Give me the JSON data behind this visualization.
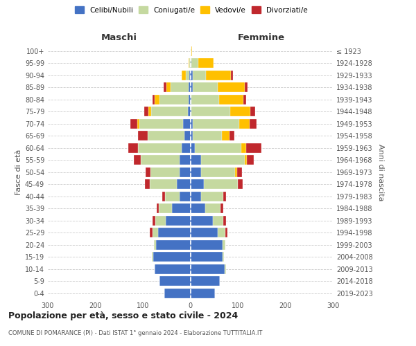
{
  "age_groups": [
    "0-4",
    "5-9",
    "10-14",
    "15-19",
    "20-24",
    "25-29",
    "30-34",
    "35-39",
    "40-44",
    "45-49",
    "50-54",
    "55-59",
    "60-64",
    "65-69",
    "70-74",
    "75-79",
    "80-84",
    "85-89",
    "90-94",
    "95-99",
    "100+"
  ],
  "birth_years": [
    "2019-2023",
    "2014-2018",
    "2009-2013",
    "2004-2008",
    "1999-2003",
    "1994-1998",
    "1989-1993",
    "1984-1988",
    "1979-1983",
    "1974-1978",
    "1969-1973",
    "1964-1968",
    "1959-1963",
    "1954-1958",
    "1949-1953",
    "1944-1948",
    "1939-1943",
    "1934-1938",
    "1929-1933",
    "1924-1928",
    "≤ 1923"
  ],
  "maschi": {
    "celibi": [
      55,
      65,
      75,
      78,
      72,
      68,
      52,
      38,
      22,
      28,
      22,
      22,
      18,
      12,
      15,
      5,
      3,
      3,
      2,
      0,
      0
    ],
    "coniugati": [
      0,
      0,
      0,
      3,
      5,
      12,
      22,
      28,
      32,
      58,
      62,
      82,
      92,
      78,
      92,
      78,
      62,
      38,
      8,
      2,
      0
    ],
    "vedovi": [
      0,
      0,
      0,
      0,
      0,
      0,
      0,
      0,
      0,
      0,
      0,
      0,
      0,
      0,
      5,
      6,
      10,
      10,
      8,
      2,
      0
    ],
    "divorziati": [
      0,
      0,
      0,
      0,
      0,
      5,
      5,
      5,
      5,
      10,
      10,
      15,
      20,
      20,
      15,
      8,
      5,
      5,
      0,
      0,
      0
    ]
  },
  "femmine": {
    "nubili": [
      52,
      62,
      72,
      68,
      68,
      58,
      48,
      32,
      22,
      28,
      22,
      22,
      10,
      5,
      5,
      2,
      2,
      5,
      5,
      2,
      0
    ],
    "coniugate": [
      0,
      0,
      3,
      3,
      5,
      15,
      22,
      32,
      48,
      72,
      72,
      92,
      98,
      62,
      98,
      82,
      58,
      52,
      28,
      15,
      2
    ],
    "vedove": [
      0,
      0,
      0,
      0,
      0,
      0,
      0,
      0,
      0,
      0,
      5,
      5,
      10,
      15,
      22,
      42,
      52,
      58,
      52,
      32,
      2
    ],
    "divorziate": [
      0,
      0,
      0,
      0,
      0,
      5,
      5,
      5,
      5,
      10,
      10,
      15,
      32,
      10,
      15,
      10,
      5,
      5,
      5,
      0,
      0
    ]
  },
  "colors": {
    "celibi": "#4472c4",
    "coniugati": "#c5d9a0",
    "vedovi": "#ffc000",
    "divorziati": "#c0282d"
  },
  "xlim": 300,
  "title": "Popolazione per età, sesso e stato civile - 2024",
  "subtitle": "COMUNE DI POMARANCE (PI) - Dati ISTAT 1° gennaio 2024 - Elaborazione TUTTITALIA.IT",
  "ylabel_left": "Fasce di età",
  "ylabel_right": "Anni di nascita",
  "xlabel_left": "Maschi",
  "xlabel_right": "Femmine",
  "bg_color": "#ffffff",
  "grid_color": "#cccccc"
}
